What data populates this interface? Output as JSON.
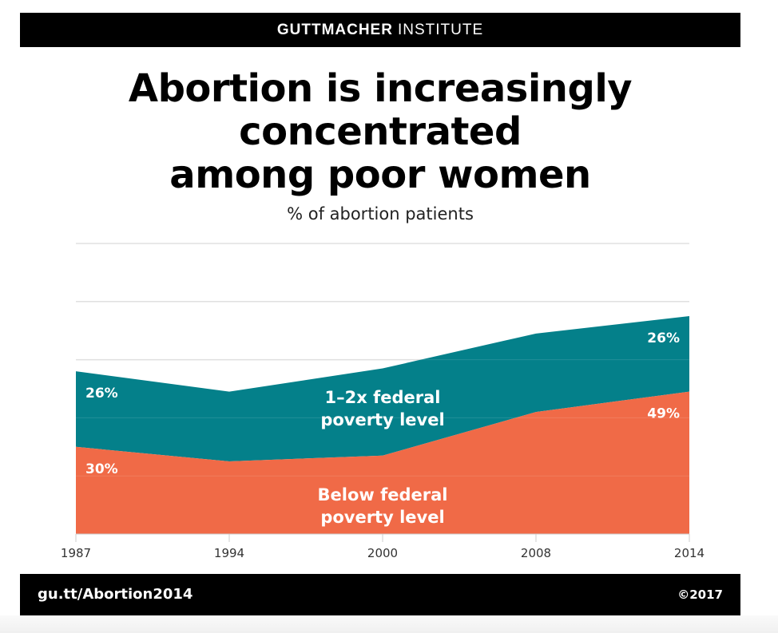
{
  "header": {
    "brand_bold": "GUTTMACHER",
    "brand_light": "INSTITUTE"
  },
  "title_lines": [
    "Abortion is increasingly",
    "concentrated",
    "among poor women"
  ],
  "subtitle": "% of abortion patients",
  "footer": {
    "url": "gu.tt/Abortion2014",
    "copyright": "©2017"
  },
  "colors": {
    "below_poverty": "#F06A47",
    "one_to_two_poverty": "#04808A",
    "grid": "#DDDDDD",
    "axis_text": "#333333"
  },
  "chart_data": {
    "type": "area",
    "stacked": true,
    "title": "Abortion is increasingly concentrated among poor women",
    "subtitle": "% of abortion patients",
    "xlabel": "",
    "ylabel": "",
    "x": [
      "1987",
      "1994",
      "2000",
      "2008",
      "2014"
    ],
    "ylim": [
      0,
      100
    ],
    "grid": true,
    "grid_values": [
      20,
      40,
      60,
      80,
      100
    ],
    "series": [
      {
        "name": "Below federal poverty level",
        "label_lines": [
          "Below federal",
          "poverty level"
        ],
        "values": [
          30,
          25,
          27,
          42,
          49
        ]
      },
      {
        "name": "1–2x federal poverty level",
        "label_lines": [
          "1–2x federal",
          "poverty level"
        ],
        "values": [
          26,
          24,
          30,
          27,
          26
        ]
      }
    ],
    "annotations": [
      {
        "series": 0,
        "x": "1987",
        "text": "30%"
      },
      {
        "series": 1,
        "x": "1987",
        "text": "26%"
      },
      {
        "series": 0,
        "x": "2014",
        "text": "49%"
      },
      {
        "series": 1,
        "x": "2014",
        "text": "26%"
      }
    ]
  }
}
